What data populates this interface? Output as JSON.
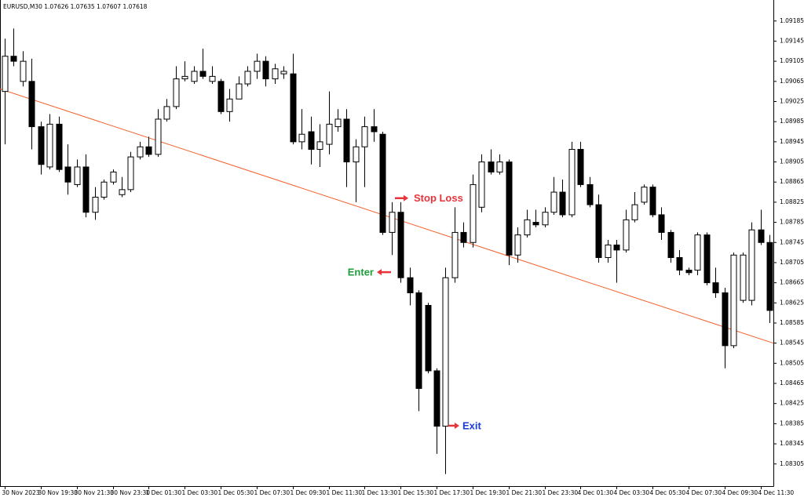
{
  "chart_data": {
    "type": "candlestick",
    "title": "EURUSD,M30  1.07626 1.07635 1.07607 1.07618",
    "up_color": "#ffffff",
    "down_color": "#000000",
    "outline_color": "#000000",
    "ylim": [
      1.08261,
      1.09208
    ],
    "yticks": [
      1.09185,
      1.09145,
      1.09105,
      1.09065,
      1.09025,
      1.08985,
      1.08945,
      1.08905,
      1.08865,
      1.08825,
      1.08785,
      1.08745,
      1.08705,
      1.08665,
      1.08625,
      1.08585,
      1.08545,
      1.08505,
      1.08465,
      1.08425,
      1.08385,
      1.08345,
      1.08305
    ],
    "categories": [
      "30 Nov 2023",
      null,
      null,
      null,
      "30 Nov 19:30",
      null,
      null,
      null,
      "30 Nov 21:30",
      null,
      null,
      null,
      "30 Nov 23:30",
      null,
      null,
      null,
      "1 Dec 01:30",
      null,
      null,
      null,
      "1 Dec 03:30",
      null,
      null,
      null,
      "1 Dec 05:30",
      null,
      null,
      null,
      "1 Dec 07:30",
      null,
      null,
      null,
      "1 Dec 09:30",
      null,
      null,
      null,
      "1 Dec 11:30",
      null,
      null,
      null,
      "1 Dec 13:30",
      null,
      null,
      null,
      "1 Dec 15:30",
      null,
      null,
      null,
      "1 Dec 17:30",
      null,
      null,
      null,
      "1 Dec 19:30",
      null,
      null,
      null,
      "1 Dec 21:30",
      null,
      null,
      null,
      "1 Dec 23:30",
      null,
      null,
      null,
      "4 Dec 01:30",
      null,
      null,
      null,
      "4 Dec 03:30",
      null,
      null,
      null,
      "4 Dec 05:30",
      null,
      null,
      null,
      "4 Dec 07:30",
      null,
      null,
      null,
      "4 Dec 09:30",
      null,
      null,
      null,
      "4 Dec 11:30",
      null
    ],
    "open": [
      1.09045,
      1.09115,
      1.09065,
      1.09065,
      1.08975,
      1.08895,
      1.0898,
      1.08895,
      1.0886,
      1.08895,
      1.08805,
      1.08835,
      1.08865,
      1.0884,
      1.0885,
      1.08915,
      1.08935,
      1.0892,
      1.0899,
      1.09015,
      1.0907,
      1.09065,
      1.09085,
      1.09065,
      1.09065,
      1.09005,
      1.0903,
      1.0906,
      1.09085,
      1.09105,
      1.0907,
      1.0908,
      1.0908,
      1.08945,
      1.08965,
      1.0893,
      1.0894,
      1.08975,
      1.0899,
      1.08905,
      1.08935,
      1.08975,
      1.0896,
      1.08765,
      1.08805,
      1.08675,
      1.08645,
      1.0862,
      1.0849,
      1.0838,
      1.08675,
      1.08765,
      1.08745,
      1.08815,
      1.08905,
      1.08885,
      1.08905,
      1.0872,
      1.0876,
      1.08785,
      1.0878,
      1.08805,
      1.08845,
      1.088,
      1.0893,
      1.0886,
      1.0882,
      1.08715,
      1.0874,
      1.0873,
      1.0879,
      1.08825,
      1.08855,
      1.088,
      1.08765,
      1.08715,
      1.0869,
      1.0869,
      1.0876,
      1.08665,
      1.08645,
      1.0854,
      1.0863,
      1.0863,
      1.0877,
      1.08745
    ],
    "high": [
      1.0915,
      1.0917,
      1.09125,
      1.0911,
      1.08985,
      1.09,
      1.08995,
      1.0894,
      1.0891,
      1.0892,
      1.08855,
      1.0887,
      1.0889,
      1.08875,
      1.08925,
      1.08945,
      1.08955,
      1.0901,
      1.0903,
      1.09095,
      1.09105,
      1.09095,
      1.0913,
      1.09095,
      1.0907,
      1.0905,
      1.09075,
      1.09095,
      1.0912,
      1.09115,
      1.091,
      1.09095,
      1.0912,
      1.0901,
      1.08995,
      1.0898,
      1.09045,
      1.0901,
      1.0901,
      1.0895,
      1.08995,
      1.0901,
      1.08965,
      1.08825,
      1.08825,
      1.08695,
      1.0865,
      1.08625,
      1.08495,
      1.08695,
      1.08815,
      1.08785,
      1.0888,
      1.0892,
      1.0893,
      1.0892,
      1.0891,
      1.08775,
      1.0881,
      1.0881,
      1.08815,
      1.08875,
      1.0887,
      1.08945,
      1.08945,
      1.08875,
      1.0884,
      1.0875,
      1.0875,
      1.0881,
      1.08845,
      1.0886,
      1.0886,
      1.08815,
      1.0877,
      1.0873,
      1.08695,
      1.08765,
      1.08765,
      1.08695,
      1.08655,
      1.08725,
      1.08725,
      1.08785,
      1.0881,
      1.0876
    ],
    "low": [
      1.0894,
      1.09095,
      1.09055,
      1.0893,
      1.0888,
      1.0889,
      1.08885,
      1.0884,
      1.08855,
      1.08795,
      1.0879,
      1.0883,
      1.0886,
      1.08835,
      1.08845,
      1.0891,
      1.08915,
      1.08915,
      1.08985,
      1.0901,
      1.09065,
      1.0906,
      1.0907,
      1.0906,
      1.09,
      1.08985,
      1.0903,
      1.09055,
      1.0907,
      1.09055,
      1.0906,
      1.0907,
      1.0894,
      1.0893,
      1.089,
      1.08895,
      1.0892,
      1.08965,
      1.08855,
      1.08825,
      1.08855,
      1.08945,
      1.0876,
      1.0872,
      1.08665,
      1.0862,
      1.0841,
      1.08485,
      1.08325,
      1.08285,
      1.08665,
      1.08735,
      1.08735,
      1.08805,
      1.0888,
      1.0888,
      1.087,
      1.08705,
      1.08755,
      1.08775,
      1.08775,
      1.088,
      1.08795,
      1.08795,
      1.08855,
      1.08815,
      1.08705,
      1.08705,
      1.08665,
      1.08725,
      1.08785,
      1.0882,
      1.08795,
      1.0875,
      1.08705,
      1.0868,
      1.0868,
      1.0868,
      1.0866,
      1.08635,
      1.08495,
      1.08535,
      1.08625,
      1.0862,
      1.0874,
      1.08585
    ],
    "close": [
      1.09115,
      1.09105,
      1.09105,
      1.08975,
      1.089,
      1.0898,
      1.0889,
      1.08865,
      1.08895,
      1.08805,
      1.08835,
      1.08865,
      1.08885,
      1.0885,
      1.08915,
      1.08935,
      1.0892,
      1.0899,
      1.09015,
      1.0907,
      1.09075,
      1.09085,
      1.09075,
      1.09075,
      1.09005,
      1.0903,
      1.0906,
      1.09085,
      1.09105,
      1.0907,
      1.0909,
      1.09085,
      1.08945,
      1.0896,
      1.0893,
      1.08945,
      1.0898,
      1.0899,
      1.08905,
      1.08935,
      1.08975,
      1.08965,
      1.08765,
      1.08805,
      1.08675,
      1.08645,
      1.08455,
      1.0849,
      1.0838,
      1.08675,
      1.08765,
      1.08745,
      1.0886,
      1.08905,
      1.08885,
      1.08905,
      1.0872,
      1.0876,
      1.0879,
      1.0878,
      1.08805,
      1.08845,
      1.088,
      1.0893,
      1.0886,
      1.0882,
      1.08715,
      1.0874,
      1.0873,
      1.0879,
      1.0882,
      1.08855,
      1.088,
      1.08765,
      1.08715,
      1.0869,
      1.08685,
      1.0876,
      1.08665,
      1.08645,
      1.0854,
      1.0872,
      1.0872,
      1.0877,
      1.08745,
      1.0861
    ],
    "trendline": {
      "color": "#f4602a",
      "start": 1.0905,
      "end": 1.08545
    },
    "annotations": [
      {
        "text": "Stop Loss",
        "price": 1.08833,
        "color": "#e8333a",
        "arrow_color": "#e8333a"
      },
      {
        "text": "Enter",
        "price": 1.08686,
        "color": "#1e9e3a",
        "arrow_color": "#e8333a"
      },
      {
        "text": "Exit",
        "price": 1.08381,
        "color": "#1a3ccf",
        "arrow_color": "#e8333a"
      }
    ]
  }
}
